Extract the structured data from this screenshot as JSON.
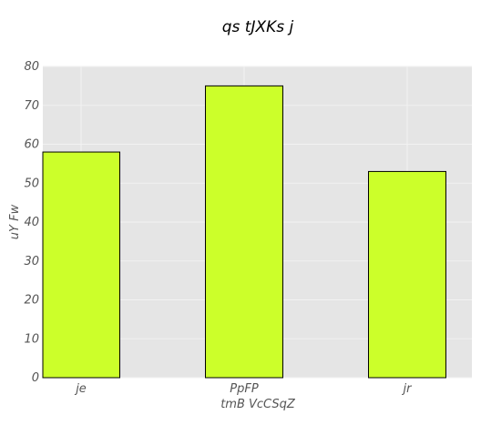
{
  "chart_data": {
    "type": "bar",
    "title": "qs tJXKs  j",
    "xlabel": "tmB VcCSqZ",
    "ylabel": "uY Fw",
    "categories": [
      "je",
      "PpFP",
      "jr"
    ],
    "values": [
      58,
      75,
      53
    ],
    "ylim": [
      0,
      80
    ],
    "yticks": [
      "0",
      "10",
      "20",
      "30",
      "40",
      "50",
      "60",
      "70",
      "80"
    ],
    "grid": true,
    "colors": {
      "bar": "#ccff2a",
      "bar_edge": "#000000",
      "plot_background": "#e5e5e5",
      "grid": "#f2f2f2"
    }
  }
}
